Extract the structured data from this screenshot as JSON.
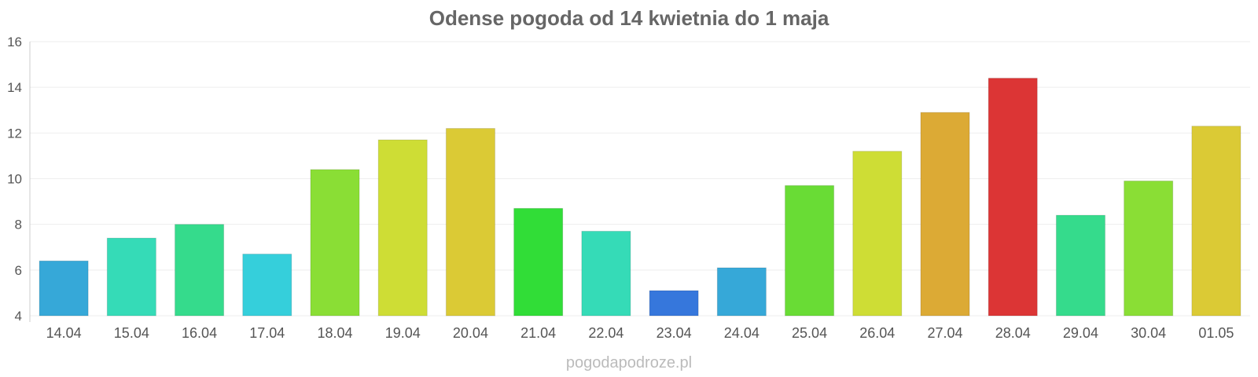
{
  "chart_data": {
    "type": "bar",
    "title": "Odense pogoda od 14 kwietnia do 1 maja",
    "xlabel": "",
    "ylabel": "",
    "ylim": [
      4,
      16
    ],
    "yticks": [
      4,
      6,
      8,
      10,
      12,
      14,
      16
    ],
    "grid": true,
    "categories": [
      "14.04",
      "15.04",
      "16.04",
      "17.04",
      "18.04",
      "19.04",
      "20.04",
      "21.04",
      "22.04",
      "23.04",
      "24.04",
      "25.04",
      "26.04",
      "27.04",
      "28.04",
      "29.04",
      "30.04",
      "01.05"
    ],
    "values": [
      6.4,
      7.4,
      8.0,
      6.7,
      10.4,
      11.7,
      12.2,
      8.7,
      7.7,
      5.1,
      6.1,
      9.7,
      11.2,
      12.9,
      14.4,
      8.4,
      9.9,
      12.3
    ],
    "colors": [
      "#36a8d8",
      "#35dbb7",
      "#35db8c",
      "#35cfdb",
      "#8ade35",
      "#cedd35",
      "#dbca35",
      "#31dd37",
      "#35dbb7",
      "#3677dc",
      "#36a8d8",
      "#69dc35",
      "#cedd35",
      "#dcaa35",
      "#dc3535",
      "#35db8c",
      "#8ade35",
      "#dbca35"
    ]
  },
  "watermark": "pogodapodroze.pl"
}
